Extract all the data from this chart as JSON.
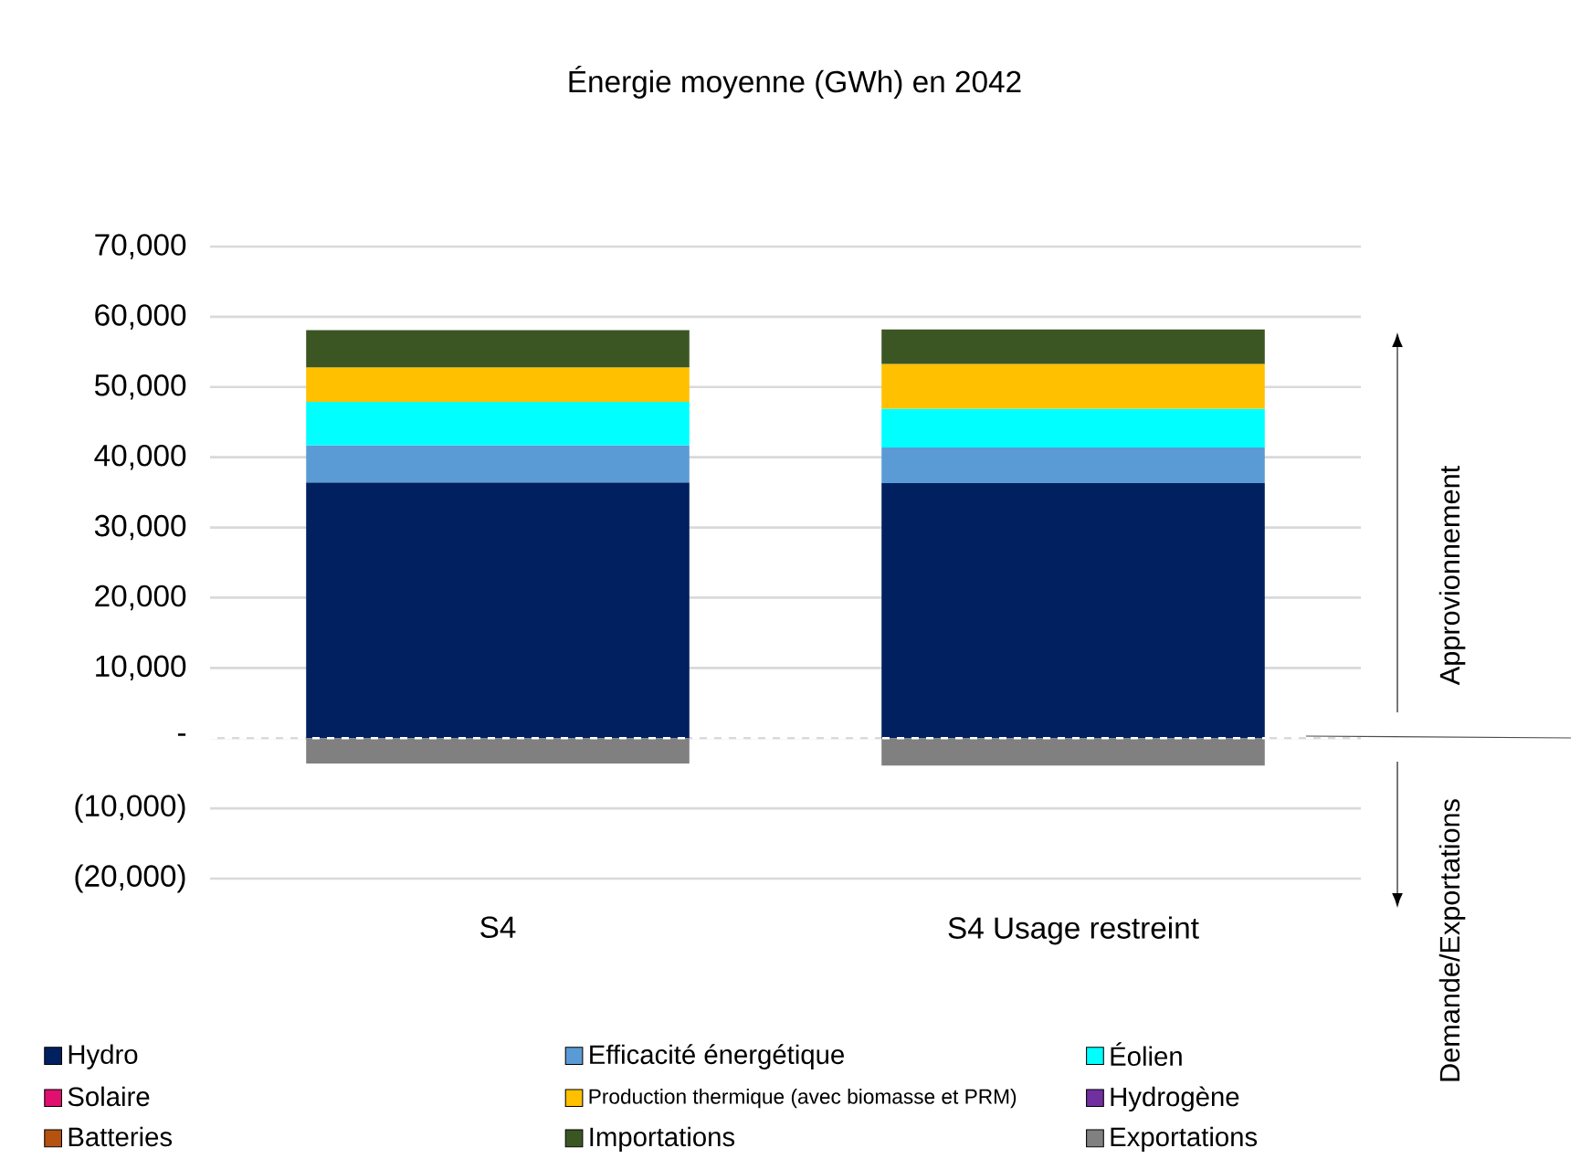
{
  "chart_data": {
    "type": "bar",
    "stacked": true,
    "title": "Énergie moyenne (GWh) en 2042",
    "categories": [
      "S4",
      "S4 Usage restreint"
    ],
    "series": [
      {
        "name": "Hydro",
        "color": "#002060",
        "values": [
          36400,
          36300
        ]
      },
      {
        "name": "Efficacité énergétique",
        "color": "#5b9bd5",
        "values": [
          5300,
          5100
        ]
      },
      {
        "name": "Éolien",
        "color": "#00ffff",
        "values": [
          6200,
          5500
        ]
      },
      {
        "name": "Solaire",
        "color": "#e0106f",
        "values": [
          0,
          0
        ]
      },
      {
        "name": "Production thermique (avec biomasse et PRM)",
        "color": "#ffc000",
        "values": [
          4900,
          6400
        ]
      },
      {
        "name": "Hydrogène",
        "color": "#7030a0",
        "values": [
          0,
          0
        ]
      },
      {
        "name": "Batteries",
        "color": "#b5520f",
        "values": [
          0,
          0
        ]
      },
      {
        "name": "Importations",
        "color": "#3b5623",
        "values": [
          5300,
          4900
        ]
      },
      {
        "name": "Exportations",
        "color": "#808080",
        "values": [
          -3600,
          -3900
        ]
      }
    ],
    "ylim": [
      -20000,
      70000
    ],
    "yticks": [
      {
        "value": -20000,
        "label": "(20,000)"
      },
      {
        "value": -10000,
        "label": "(10,000)"
      },
      {
        "value": 0,
        "label": "-"
      },
      {
        "value": 10000,
        "label": "10,000"
      },
      {
        "value": 20000,
        "label": "20,000"
      },
      {
        "value": 30000,
        "label": "30,000"
      },
      {
        "value": 40000,
        "label": "40,000"
      },
      {
        "value": 50000,
        "label": "50,000"
      },
      {
        "value": 60000,
        "label": "60,000"
      },
      {
        "value": 70000,
        "label": "70,000"
      }
    ],
    "grid": "y",
    "legend": "bottom",
    "ref_lines": [
      {
        "axis": "y",
        "value": 0,
        "color": "#ffffff",
        "line_style": "dashed"
      }
    ],
    "annotations": [
      "Approvionnement",
      "Demande/Exportations"
    ]
  }
}
